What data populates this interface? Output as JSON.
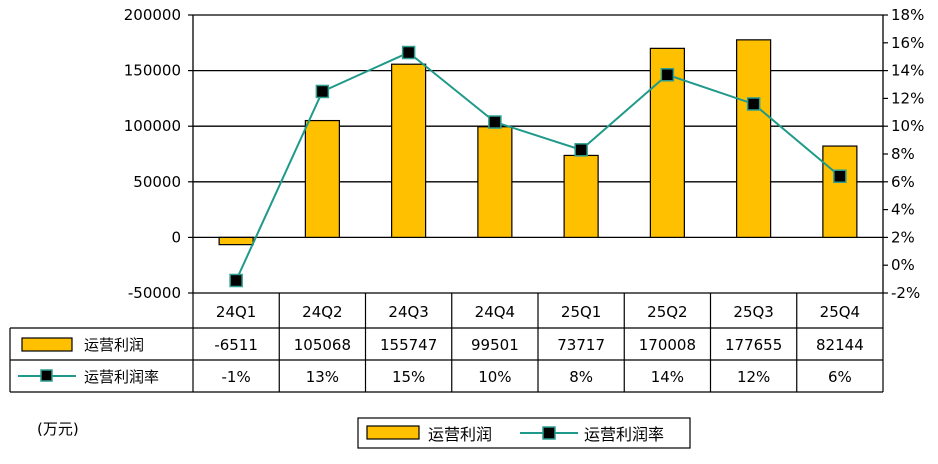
{
  "chart_data": {
    "type": "bar",
    "categories": [
      "24Q1",
      "24Q2",
      "24Q3",
      "24Q4",
      "25Q1",
      "25Q2",
      "25Q3",
      "25Q4"
    ],
    "series": [
      {
        "name": "运营利润",
        "type": "bar",
        "axis": "left",
        "values": [
          -6511,
          105068,
          155747,
          99501,
          73717,
          170008,
          177655,
          82144
        ],
        "labels": [
          "-6511",
          "105068",
          "155747",
          "99501",
          "73717",
          "170008",
          "177655",
          "82144"
        ]
      },
      {
        "name": "运营利润率",
        "type": "line",
        "axis": "right",
        "values": [
          -1.1,
          12.5,
          15.3,
          10.3,
          8.3,
          13.7,
          11.6,
          6.4
        ],
        "labels": [
          "-1%",
          "13%",
          "15%",
          "10%",
          "8%",
          "14%",
          "12%",
          "6%"
        ]
      }
    ],
    "left_axis": {
      "range": [
        -50000,
        200000
      ],
      "ticks": [
        -50000,
        0,
        50000,
        100000,
        150000,
        200000
      ],
      "tick_labels": [
        "-50000",
        "0",
        "50000",
        "100000",
        "150000",
        "200000"
      ]
    },
    "right_axis": {
      "range": [
        -2,
        18
      ],
      "ticks": [
        -2,
        0,
        2,
        4,
        6,
        8,
        10,
        12,
        14,
        16,
        18
      ],
      "tick_labels": [
        "-2%",
        "0%",
        "2%",
        "4%",
        "6%",
        "8%",
        "10%",
        "12%",
        "14%",
        "16%",
        "18%"
      ]
    },
    "unit_label": "(万元)",
    "grid": true,
    "data_table": true,
    "legend_position": "bottom-center"
  },
  "colors": {
    "bar_fill": "#FFC000",
    "bar_stroke": "#000000",
    "line": "#1F9A8A",
    "marker_fill": "#000000",
    "marker_stroke": "#2F9E8F"
  }
}
